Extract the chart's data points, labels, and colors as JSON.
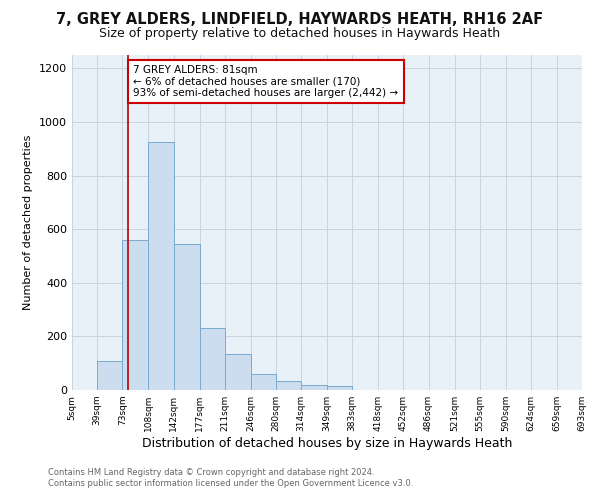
{
  "title1": "7, GREY ALDERS, LINDFIELD, HAYWARDS HEATH, RH16 2AF",
  "title2": "Size of property relative to detached houses in Haywards Heath",
  "xlabel": "Distribution of detached houses by size in Haywards Heath",
  "ylabel": "Number of detached properties",
  "footer1": "Contains HM Land Registry data © Crown copyright and database right 2024.",
  "footer2": "Contains public sector information licensed under the Open Government Licence v3.0.",
  "annotation_title": "7 GREY ALDERS: 81sqm",
  "annotation_line1": "← 6% of detached houses are smaller (170)",
  "annotation_line2": "93% of semi-detached houses are larger (2,442) →",
  "property_size": 81,
  "bar_edges": [
    5,
    39,
    73,
    108,
    142,
    177,
    211,
    246,
    280,
    314,
    349,
    383,
    418,
    452,
    486,
    521,
    555,
    590,
    624,
    659,
    693
  ],
  "bar_heights": [
    0,
    110,
    560,
    925,
    545,
    230,
    135,
    60,
    35,
    20,
    15,
    0,
    0,
    0,
    0,
    0,
    0,
    0,
    0,
    0
  ],
  "bar_color": "#ccddf0",
  "bar_edge_color": "#7aaad0",
  "vline_color": "#bb0000",
  "vline_x": 81,
  "ylim": [
    0,
    1250
  ],
  "yticks": [
    0,
    200,
    400,
    600,
    800,
    1000,
    1200
  ],
  "bg_color": "#ffffff",
  "plot_bg": "#e8f0f8",
  "grid_color": "#c8d4e0",
  "annotation_box_color": "#ffffff",
  "annotation_box_edge": "#cc0000",
  "title1_fontsize": 10.5,
  "title2_fontsize": 9,
  "xlabel_fontsize": 9,
  "ylabel_fontsize": 8
}
